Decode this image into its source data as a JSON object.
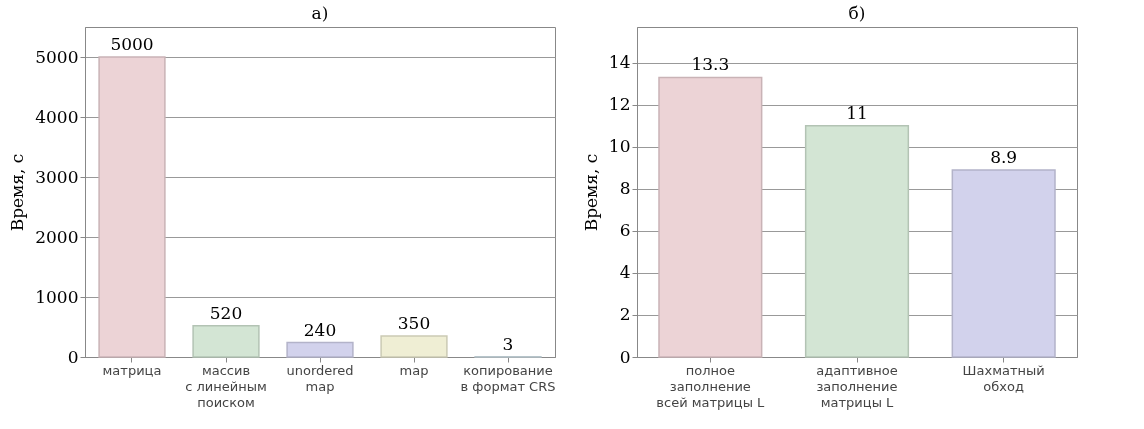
{
  "chart_data": [
    {
      "type": "bar",
      "title": "а)",
      "ylabel": "Время, с",
      "categories": [
        "матрица",
        "массив\nс линейным\nпоиском",
        "unordered\nmap",
        "map",
        "копирование\nв формат CRS"
      ],
      "values": [
        5000,
        520,
        240,
        350,
        3
      ],
      "colors": [
        "#ecd3d6",
        "#d3e5d4",
        "#d2d2ec",
        "#efeed4",
        "#d6e6ee"
      ],
      "ylim": [
        0,
        5500
      ],
      "yticks": [
        0,
        1000,
        2000,
        3000,
        4000,
        5000
      ],
      "grid": "y",
      "data_labels": true
    },
    {
      "type": "bar",
      "title": "б)",
      "ylabel": "Время, с",
      "categories": [
        "полное\nзаполнение\nвсей матрицы L",
        "адаптивное\nзаполнение\nматрицы L",
        "Шахматный\nобход"
      ],
      "values": [
        13.3,
        11,
        8.9
      ],
      "colors": [
        "#ecd3d6",
        "#d3e5d4",
        "#d2d2ec"
      ],
      "ylim": [
        0,
        15.7
      ],
      "yticks": [
        0,
        2,
        4,
        6,
        8,
        10,
        12,
        14
      ],
      "grid": "y",
      "data_labels": true
    }
  ]
}
